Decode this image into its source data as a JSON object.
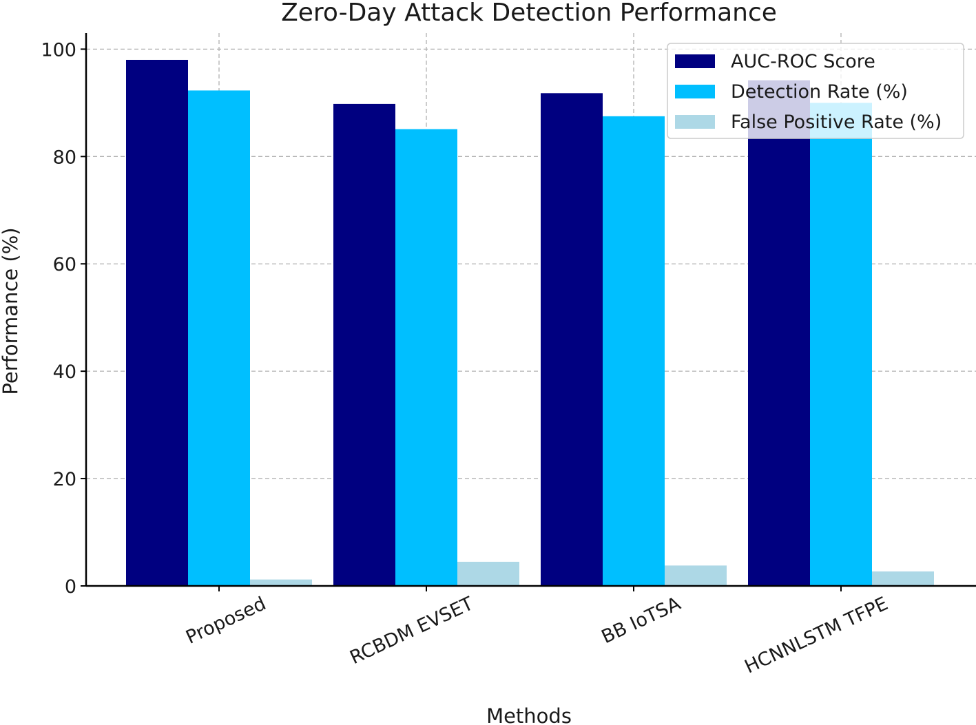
{
  "chart_data": {
    "type": "bar",
    "title": "Zero-Day Attack Detection Performance",
    "xlabel": "Methods",
    "ylabel": "Performance (%)",
    "categories": [
      "Proposed",
      "RCBDM EVSET",
      "BB IoTSA",
      "HCNNLSTM TFPE"
    ],
    "series": [
      {
        "name": "AUC-ROC Score",
        "color": "#000080",
        "values": [
          98.0,
          89.8,
          91.8,
          94.2
        ]
      },
      {
        "name": "Detection Rate (%)",
        "color": "#00bfff",
        "values": [
          92.3,
          85.1,
          87.5,
          90.0
        ]
      },
      {
        "name": "False Positive Rate (%)",
        "color": "#add8e6",
        "values": [
          1.2,
          4.5,
          3.8,
          2.7
        ]
      }
    ],
    "ylim": [
      0,
      103
    ],
    "yticks": [
      "0",
      "20",
      "40",
      "60",
      "80",
      "100"
    ],
    "grid": true,
    "legend_position": "top-right"
  }
}
